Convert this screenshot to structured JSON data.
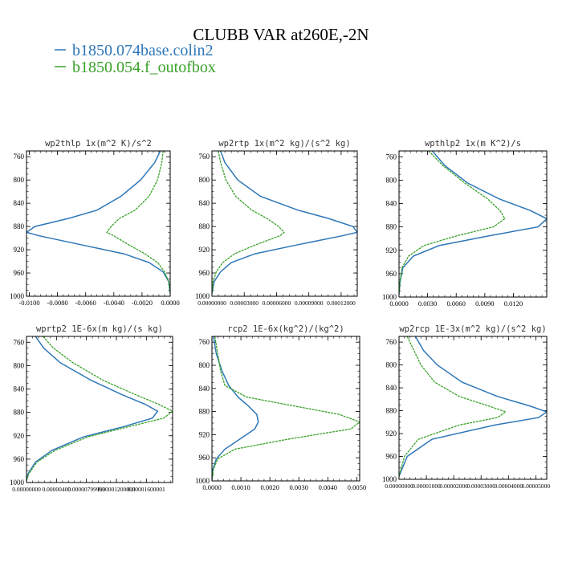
{
  "figure": {
    "title": "CLUBB VAR at260E,-2N",
    "legend": [
      {
        "name": "b1850.074base.colin2",
        "color": "#2e77b8"
      },
      {
        "name": "b1850.054.f_outofbox",
        "color": "#3aa22a"
      }
    ]
  },
  "chart_data": [
    {
      "type": "line",
      "title": "wp2thlp  1x(m^2 K)/s^2",
      "xlim": [
        -0.0102,
        0.0
      ],
      "ylim": [
        1000,
        750
      ],
      "grid": false,
      "yticks": [
        760,
        800,
        840,
        880,
        920,
        960,
        1000
      ],
      "xticks": [
        -0.01,
        -0.008,
        -0.006,
        -0.004,
        -0.002,
        0.0
      ],
      "xtick_labels": [
        "-0.0100",
        "-0.0080",
        "-0.0060",
        "-0.0040",
        "-0.0020",
        "0.0000"
      ],
      "series": [
        {
          "name": "b1850.074base.colin2",
          "color": "#2e77b8",
          "x": [
            -0.0007,
            -0.0011,
            -0.0021,
            -0.0035,
            -0.0052,
            -0.0072,
            -0.0096,
            -0.0102,
            -0.0093,
            -0.0062,
            -0.0033,
            -0.0015,
            -0.0005,
            -0.0001,
            0.0
          ],
          "y": [
            750,
            770,
            800,
            828,
            852,
            866,
            880,
            890,
            896,
            912,
            927,
            942,
            958,
            975,
            995
          ]
        },
        {
          "name": "b1850.054.f_outofbox",
          "color": "#3aa22a",
          "x": [
            -0.0005,
            -0.0006,
            -0.0009,
            -0.0015,
            -0.0025,
            -0.0036,
            -0.0042,
            -0.0045,
            -0.004,
            -0.0029,
            -0.0018,
            -0.0009,
            -0.0004,
            -0.0001,
            0.0
          ],
          "y": [
            750,
            770,
            800,
            828,
            852,
            866,
            880,
            890,
            896,
            912,
            927,
            942,
            958,
            975,
            995
          ]
        }
      ]
    },
    {
      "type": "line",
      "title": "wp2rtp  1x(m^2 kg)/(s^2 kg)",
      "xlim": [
        0.0,
        0.000135
      ],
      "ylim": [
        1000,
        750
      ],
      "grid": false,
      "yticks": [
        760,
        800,
        840,
        880,
        920,
        960,
        1000
      ],
      "xticks": [
        0.0,
        3e-05,
        6e-05,
        9e-05,
        0.00012
      ],
      "xtick_labels": [
        "0.00000000",
        "0.00003000",
        "0.00006000",
        "0.00009000",
        "0.00012000"
      ],
      "series": [
        {
          "name": "b1850.074base.colin2",
          "color": "#2e77b8",
          "x": [
            8e-06,
            1.2e-05,
            2.4e-05,
            4.5e-05,
            8e-05,
            0.000108,
            0.000131,
            0.000135,
            0.000121,
            7.8e-05,
            4e-05,
            1.8e-05,
            8e-06,
            2e-06,
            0.0
          ],
          "y": [
            750,
            770,
            800,
            828,
            852,
            866,
            880,
            890,
            896,
            912,
            927,
            942,
            958,
            975,
            995
          ]
        },
        {
          "name": "b1850.054.f_outofbox",
          "color": "#3aa22a",
          "x": [
            6e-06,
            8e-06,
            1.3e-05,
            2.2e-05,
            3.7e-05,
            5.1e-05,
            6.2e-05,
            6.7e-05,
            6.3e-05,
            4e-05,
            2.1e-05,
            1e-05,
            4e-06,
            1e-06,
            0.0
          ],
          "y": [
            750,
            770,
            800,
            828,
            852,
            866,
            880,
            890,
            896,
            912,
            927,
            942,
            958,
            975,
            995
          ]
        }
      ]
    },
    {
      "type": "line",
      "title": "wpthlp2  1x(m K^2)/s",
      "xlim": [
        0.0,
        0.0155
      ],
      "ylim": [
        1000,
        750
      ],
      "grid": false,
      "yticks": [
        760,
        800,
        840,
        880,
        920,
        960,
        1000
      ],
      "xticks": [
        0.0,
        0.003,
        0.006,
        0.009,
        0.012
      ],
      "xtick_labels": [
        "0.0000",
        "0.0030",
        "0.0060",
        "0.0090",
        "0.0120"
      ],
      "series": [
        {
          "name": "b1850.074base.colin2",
          "color": "#2e77b8",
          "x": [
            0.0035,
            0.0048,
            0.0072,
            0.0105,
            0.0138,
            0.0155,
            0.0146,
            0.0095,
            0.0042,
            0.0015,
            0.0004,
            0.0001,
            0.0
          ],
          "y": [
            750,
            775,
            805,
            832,
            852,
            866,
            880,
            895,
            912,
            930,
            950,
            975,
            995
          ]
        },
        {
          "name": "b1850.054.f_outofbox",
          "color": "#3aa22a",
          "x": [
            0.0031,
            0.0046,
            0.0069,
            0.0093,
            0.0106,
            0.0111,
            0.0099,
            0.0061,
            0.0026,
            0.001,
            0.0003,
            0.0001,
            0.0
          ],
          "y": [
            750,
            775,
            805,
            832,
            852,
            866,
            880,
            895,
            912,
            930,
            950,
            975,
            995
          ]
        }
      ]
    },
    {
      "type": "line",
      "title": "wprtp2  1E-6x(m kg)/(s kg)",
      "xlim": [
        0.0,
        1.95e-05
      ],
      "ylim": [
        1000,
        750
      ],
      "grid": false,
      "yticks": [
        760,
        800,
        840,
        880,
        920,
        960,
        1000
      ],
      "xticks": [
        0.0,
        4e-06,
        8e-06,
        1.2e-05,
        1.6e-05
      ],
      "xtick_labels": [
        "0.00000000",
        "0.00000400",
        "0.00000799999",
        "0.00001200000",
        "0.00001600001"
      ],
      "series": [
        {
          "name": "b1850.074base.colin2",
          "color": "#2e77b8",
          "x": [
            1.2e-06,
            2.3e-06,
            4.5e-06,
            8.6e-06,
            1.28e-05,
            1.58e-05,
            1.75e-05,
            1.68e-05,
            1.28e-05,
            7.6e-06,
            3.4e-06,
            1.2e-06,
            2e-07,
            0.0
          ],
          "y": [
            750,
            770,
            795,
            825,
            850,
            866,
            878,
            890,
            905,
            922,
            945,
            965,
            985,
            997
          ]
        },
        {
          "name": "b1850.054.f_outofbox",
          "color": "#3aa22a",
          "x": [
            2.2e-06,
            3.6e-06,
            6.2e-06,
            1.02e-05,
            1.46e-05,
            1.76e-05,
            1.95e-05,
            1.83e-05,
            1.35e-05,
            8.2e-06,
            3.8e-06,
            1.4e-06,
            3e-07,
            0.0
          ],
          "y": [
            750,
            770,
            795,
            825,
            850,
            866,
            878,
            890,
            905,
            922,
            945,
            965,
            985,
            997
          ]
        }
      ]
    },
    {
      "type": "line",
      "title": "rcp2  1E-6x(kg^2)/(kg^2)",
      "xlim": [
        0.0,
        0.0051
      ],
      "ylim": [
        1000,
        750
      ],
      "grid": false,
      "yticks": [
        760,
        800,
        840,
        880,
        920,
        960,
        1000
      ],
      "xticks": [
        0.0,
        0.001,
        0.002,
        0.003,
        0.004,
        0.005
      ],
      "xtick_labels": [
        "0.0000",
        "0.0010",
        "0.0020",
        "0.0030",
        "0.0040",
        "0.0050"
      ],
      "series": [
        {
          "name": "b1850.074base.colin2",
          "color": "#2e77b8",
          "x": [
            5e-05,
            0.00015,
            0.00035,
            0.00058,
            0.0009,
            0.00125,
            0.00155,
            0.0016,
            0.00148,
            0.00095,
            0.00045,
            0.00015,
            3e-05,
            0.0
          ],
          "y": [
            750,
            780,
            810,
            835,
            855,
            870,
            885,
            898,
            910,
            928,
            945,
            962,
            980,
            998
          ]
        },
        {
          "name": "b1850.054.f_outofbox",
          "color": "#3aa22a",
          "x": [
            0.0001,
            0.0002,
            0.0003,
            0.00045,
            0.0012,
            0.0028,
            0.0044,
            0.0051,
            0.0048,
            0.0026,
            0.0008,
            0.0002,
            5e-05,
            0.0
          ],
          "y": [
            750,
            780,
            810,
            835,
            855,
            870,
            885,
            898,
            910,
            928,
            945,
            962,
            980,
            998
          ]
        }
      ]
    },
    {
      "type": "line",
      "title": "wp2rcp  1E-3x(m^2 kg)/(s^2 kg)",
      "xlim": [
        0.0,
        5.4e-05
      ],
      "ylim": [
        1000,
        750
      ],
      "grid": false,
      "yticks": [
        760,
        800,
        840,
        880,
        920,
        960,
        1000
      ],
      "xticks": [
        0.0,
        1e-05,
        2e-05,
        3e-05,
        4e-05,
        5e-05
      ],
      "xtick_labels": [
        "0.00000000",
        "0.00001000",
        "0.00002000",
        "0.00003000",
        "0.00004000",
        "0.00005000"
      ],
      "series": [
        {
          "name": "b1850.074base.colin2",
          "color": "#2e77b8",
          "x": [
            6e-06,
            9e-06,
            1.4e-05,
            2.3e-05,
            3.6e-05,
            4.8e-05,
            5.4e-05,
            5.1e-05,
            3.5e-05,
            1.2e-05,
            3e-06,
            0.0
          ],
          "y": [
            750,
            775,
            800,
            830,
            855,
            872,
            882,
            892,
            905,
            930,
            960,
            995
          ]
        },
        {
          "name": "b1850.054.f_outofbox",
          "color": "#3aa22a",
          "x": [
            3e-06,
            5.5e-06,
            8e-06,
            1.3e-05,
            2.2e-05,
            3.3e-05,
            3.9e-05,
            3.6e-05,
            2.2e-05,
            7e-06,
            2e-06,
            0.0
          ],
          "y": [
            750,
            775,
            800,
            830,
            855,
            872,
            882,
            892,
            905,
            930,
            960,
            995
          ]
        }
      ]
    }
  ]
}
